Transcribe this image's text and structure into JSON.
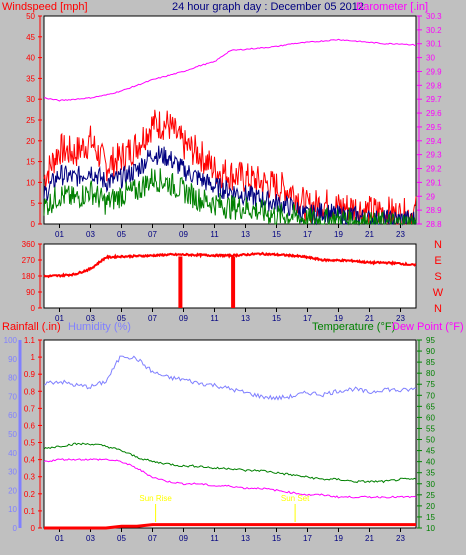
{
  "chart_data": [
    {
      "type": "line",
      "title": "24 hour graph day : December 05 2012",
      "left_axis_label": "Windspeed [mph]",
      "right_axis_label": "Barometer [.in]",
      "x_ticks": [
        "01",
        "03",
        "05",
        "07",
        "09",
        "11",
        "13",
        "15",
        "17",
        "19",
        "21",
        "23"
      ],
      "ylim_left": [
        0,
        50
      ],
      "yticks_left": [
        "0",
        "5",
        "10",
        "15",
        "20",
        "25",
        "30",
        "35",
        "40",
        "45",
        "50"
      ],
      "ylim_right": [
        28.8,
        30.3
      ],
      "yticks_right": [
        "28.8",
        "28.9",
        "29",
        "29.1",
        "29.2",
        "29.3",
        "29.4",
        "29.5",
        "29.6",
        "29.7",
        "29.8",
        "29.9",
        "30",
        "30.1",
        "30.2",
        "30.3"
      ],
      "series": [
        {
          "color": "#ff0000",
          "axis": "left",
          "x": [
            0,
            1,
            2,
            3,
            4,
            5,
            6,
            7,
            8,
            9,
            10,
            11,
            12,
            13,
            14,
            15,
            16,
            17,
            18,
            19,
            20,
            21,
            22,
            23,
            24
          ],
          "values": [
            11,
            18,
            17,
            20,
            14,
            16,
            19,
            24,
            24,
            19,
            17,
            13,
            12,
            11,
            10,
            9,
            8,
            4,
            5,
            4,
            4,
            3,
            3,
            2,
            3
          ]
        },
        {
          "color": "#000080",
          "axis": "left",
          "x": [
            0,
            1,
            2,
            3,
            4,
            5,
            6,
            7,
            8,
            9,
            10,
            11,
            12,
            13,
            14,
            15,
            16,
            17,
            18,
            19,
            20,
            21,
            22,
            23,
            24
          ],
          "values": [
            7,
            12,
            11,
            13,
            10,
            11,
            13,
            17,
            16,
            13,
            11,
            9,
            8,
            7,
            6,
            5,
            4,
            2,
            3,
            2,
            2,
            1,
            1,
            1,
            1
          ]
        },
        {
          "color": "#008000",
          "axis": "left",
          "x": [
            0,
            1,
            2,
            3,
            4,
            5,
            6,
            7,
            8,
            9,
            10,
            11,
            12,
            13,
            14,
            15,
            16,
            17,
            18,
            19,
            20,
            21,
            22,
            23,
            24
          ],
          "values": [
            4,
            7,
            6,
            8,
            5,
            7,
            8,
            11,
            10,
            8,
            6,
            5,
            4,
            4,
            3,
            2,
            2,
            1,
            1,
            1,
            1,
            0,
            0,
            0,
            0
          ]
        },
        {
          "color": "#ff00ff",
          "axis": "right",
          "x": [
            0,
            1,
            2,
            3,
            4,
            5,
            6,
            7,
            8,
            9,
            10,
            11,
            12,
            13,
            14,
            15,
            16,
            17,
            18,
            19,
            20,
            21,
            22,
            23,
            24
          ],
          "values": [
            29.71,
            29.69,
            29.7,
            29.71,
            29.73,
            29.76,
            29.8,
            29.84,
            29.87,
            29.9,
            29.94,
            29.97,
            30.05,
            30.06,
            30.07,
            30.08,
            30.1,
            30.11,
            30.12,
            30.13,
            30.12,
            30.11,
            30.1,
            30.1,
            30.09
          ]
        }
      ]
    },
    {
      "type": "line",
      "title": "",
      "x_ticks": [
        "01",
        "03",
        "05",
        "07",
        "09",
        "11",
        "13",
        "15",
        "17",
        "19",
        "21",
        "23"
      ],
      "ylim": [
        0,
        360
      ],
      "yticks": [
        "0",
        "90",
        "180",
        "270",
        "360"
      ],
      "compass": [
        "N",
        "W",
        "S",
        "E",
        "N"
      ],
      "series": [
        {
          "color": "#ff0000",
          "x": [
            0,
            1,
            2,
            3,
            4,
            5,
            6,
            7,
            8,
            9,
            10,
            11,
            12,
            13,
            14,
            15,
            16,
            17,
            18,
            19,
            20,
            21,
            22,
            23,
            24
          ],
          "values": [
            178,
            182,
            190,
            220,
            285,
            290,
            292,
            295,
            300,
            300,
            298,
            296,
            295,
            300,
            305,
            300,
            295,
            285,
            270,
            268,
            265,
            255,
            255,
            250,
            240
          ]
        },
        {
          "color": "#ff0000",
          "x": [
            8.8,
            12.2
          ],
          "values": [
            0,
            0
          ],
          "spikes": true
        }
      ]
    },
    {
      "type": "line",
      "title": "",
      "left_axis_labels": [
        "Rainfall (.in)",
        "Humidity (%)"
      ],
      "right_axis_labels": [
        "Temperature (°F)",
        "Dew Point (°F)"
      ],
      "x_ticks": [
        "01",
        "03",
        "05",
        "07",
        "09",
        "11",
        "13",
        "15",
        "17",
        "19",
        "21",
        "23"
      ],
      "ylim_rain": [
        0,
        1.1
      ],
      "yticks_rain": [
        "0",
        "0.1",
        "0.2",
        "0.3",
        "0.4",
        "0.5",
        "0.6",
        "0.7",
        "0.8",
        "0.9",
        "1",
        "1.1"
      ],
      "ylim_humidity": [
        0,
        100
      ],
      "yticks_humidity": [
        "0",
        "10",
        "20",
        "30",
        "40",
        "50",
        "60",
        "70",
        "80",
        "90",
        "100"
      ],
      "ylim_temp": [
        10,
        95
      ],
      "yticks_temp": [
        "10",
        "15",
        "20",
        "25",
        "30",
        "35",
        "40",
        "45",
        "50",
        "55",
        "60",
        "65",
        "70",
        "75",
        "80",
        "85",
        "90",
        "95"
      ],
      "annotations": [
        {
          "text": "Sun Rise",
          "x": 7.2
        },
        {
          "text": "Sun Set",
          "x": 16.2
        }
      ],
      "series": [
        {
          "color": "#8080ff",
          "axis": "humidity",
          "x": [
            0,
            1,
            2,
            3,
            4,
            5,
            6,
            7,
            8,
            9,
            10,
            11,
            12,
            13,
            14,
            15,
            16,
            17,
            18,
            19,
            20,
            21,
            22,
            23,
            24
          ],
          "values": [
            77,
            78,
            76,
            75,
            78,
            92,
            90,
            83,
            80,
            79,
            77,
            76,
            74,
            72,
            70,
            69,
            70,
            72,
            71,
            73,
            74,
            72,
            74,
            73,
            74
          ]
        },
        {
          "color": "#008000",
          "axis": "temp",
          "x": [
            0,
            1,
            2,
            3,
            4,
            5,
            6,
            7,
            8,
            9,
            10,
            11,
            12,
            13,
            14,
            15,
            16,
            17,
            18,
            19,
            20,
            21,
            22,
            23,
            24
          ],
          "values": [
            46,
            47,
            48,
            48,
            47,
            45,
            42,
            40,
            39,
            38,
            38,
            37,
            37,
            36,
            36,
            35,
            34,
            33,
            32,
            32,
            31,
            31,
            31,
            32,
            32
          ]
        },
        {
          "color": "#ff00ff",
          "axis": "temp",
          "x": [
            0,
            1,
            2,
            3,
            4,
            5,
            6,
            7,
            8,
            9,
            10,
            11,
            12,
            13,
            14,
            15,
            16,
            17,
            18,
            19,
            20,
            21,
            22,
            23,
            24
          ],
          "values": [
            40,
            41,
            41,
            41,
            41,
            40,
            37,
            33,
            31,
            30,
            30,
            29,
            29,
            28,
            28,
            27,
            26,
            25,
            25,
            24,
            24,
            24,
            24,
            24,
            24
          ]
        },
        {
          "color": "#ff0000",
          "axis": "rain",
          "x": [
            0,
            1,
            2,
            3,
            4,
            5,
            6,
            7,
            8,
            9,
            10,
            11,
            12,
            13,
            14,
            15,
            16,
            17,
            18,
            19,
            20,
            21,
            22,
            23,
            24
          ],
          "values": [
            0,
            0,
            0,
            0,
            0,
            0.01,
            0.01,
            0.02,
            0.02,
            0.02,
            0.02,
            0.02,
            0.02,
            0.02,
            0.02,
            0.02,
            0.02,
            0.02,
            0.02,
            0.02,
            0.02,
            0.02,
            0.02,
            0.02,
            0.02
          ]
        }
      ]
    }
  ]
}
